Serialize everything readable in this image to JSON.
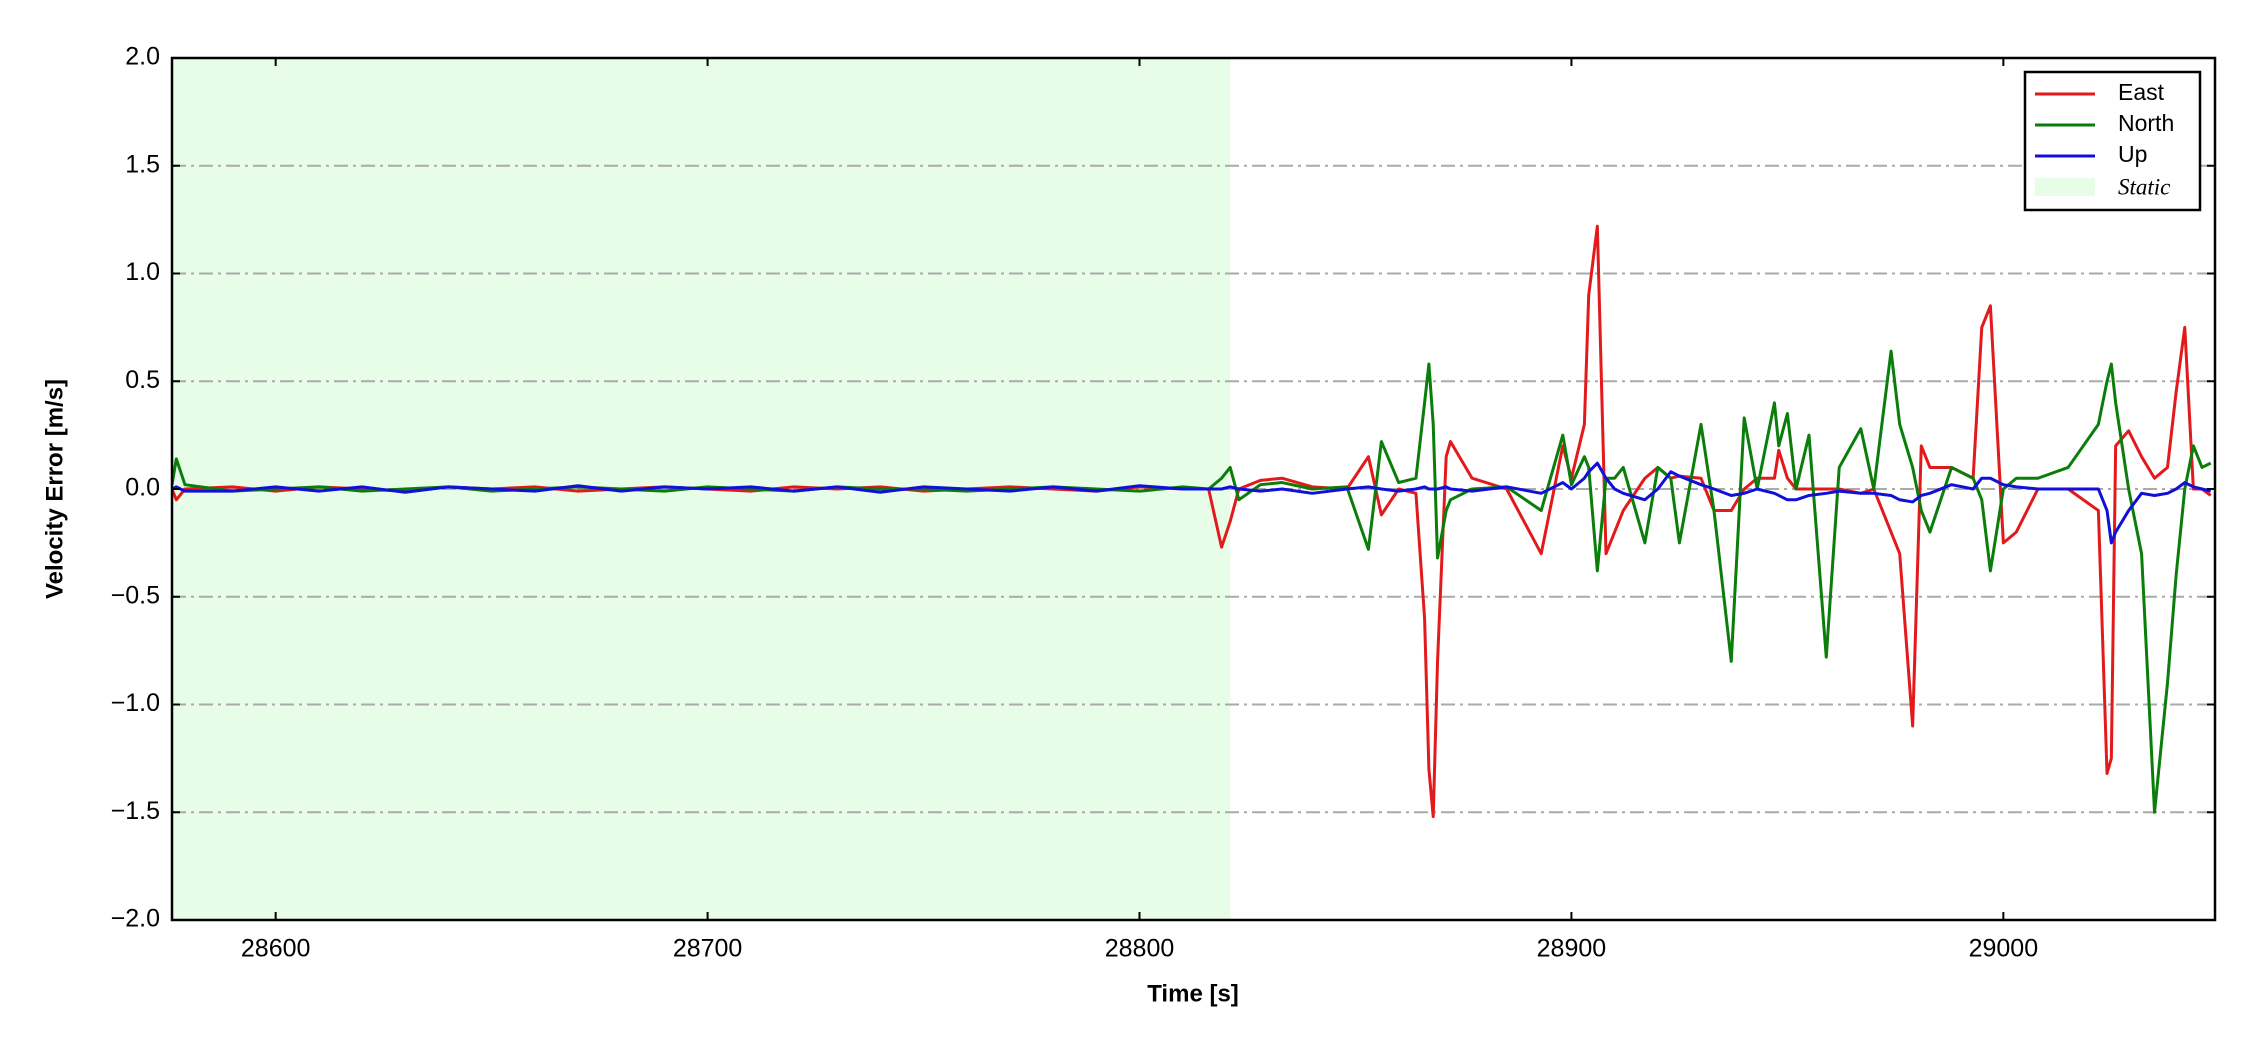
{
  "chart_data": {
    "type": "line",
    "xlabel": "Time [s]",
    "ylabel": "Velocity Error [m/s]",
    "xlim": [
      28576,
      29049
    ],
    "ylim": [
      -2.0,
      2.0
    ],
    "xticks": [
      28600,
      28700,
      28800,
      28900,
      29000
    ],
    "yticks": [
      {
        "value": -2.0,
        "label": "−2.0"
      },
      {
        "value": -1.5,
        "label": "−1.5"
      },
      {
        "value": -1.0,
        "label": "−1.0"
      },
      {
        "value": -0.5,
        "label": "−0.5"
      },
      {
        "value": 0.0,
        "label": "0.0"
      },
      {
        "value": 0.5,
        "label": "0.5"
      },
      {
        "value": 1.0,
        "label": "1.0"
      },
      {
        "value": 1.5,
        "label": "1.5"
      },
      {
        "value": 2.0,
        "label": "2.0"
      }
    ],
    "grid": true,
    "legend": "upper right",
    "shaded_region": {
      "label": "Static",
      "xmin": 28576,
      "xmax": 28821,
      "color": "#e8fde8"
    },
    "x": [
      28576,
      28577,
      28579,
      28590,
      28600,
      28610,
      28620,
      28630,
      28640,
      28650,
      28660,
      28670,
      28680,
      28690,
      28700,
      28710,
      28720,
      28730,
      28740,
      28750,
      28760,
      28770,
      28780,
      28790,
      28800,
      28810,
      28816,
      28819,
      28821,
      28823,
      28828,
      28833,
      28840,
      28848,
      28853,
      28856,
      28860,
      28864,
      28866,
      28867,
      28868,
      28869,
      28871,
      28872,
      28877,
      28885,
      28893,
      28898,
      28900,
      28903,
      28904,
      28906,
      28908,
      28910,
      28912,
      28917,
      28920,
      28923,
      28925,
      28930,
      28933,
      28937,
      28940,
      28943,
      28947,
      28948,
      28950,
      28952,
      28955,
      28959,
      28962,
      28967,
      28970,
      28974,
      28976,
      28979,
      28981,
      28983,
      28988,
      28993,
      28995,
      28997,
      29000,
      29003,
      29008,
      29015,
      29022,
      29024,
      29025,
      29026,
      29029,
      29032,
      29035,
      29038,
      29040,
      29042,
      29044,
      29046,
      29048
    ],
    "series": [
      {
        "name": "East",
        "color": "#e31a1c",
        "values": [
          0,
          -0.05,
          0,
          0.01,
          -0.01,
          0.01,
          0,
          -0.01,
          0.01,
          0,
          0.01,
          -0.01,
          0,
          0.01,
          0,
          -0.01,
          0.01,
          0,
          0.01,
          -0.01,
          0,
          0.01,
          0,
          -0.01,
          0.01,
          0,
          0,
          -0.27,
          -0.15,
          0,
          0.04,
          0.05,
          0.01,
          0,
          0.15,
          -0.12,
          0,
          -0.02,
          -0.6,
          -1.3,
          -1.52,
          -0.8,
          0.15,
          0.22,
          0.05,
          0,
          -0.3,
          0.2,
          0.05,
          0.3,
          0.9,
          1.22,
          -0.3,
          -0.2,
          -0.1,
          0.05,
          0.1,
          0.05,
          0.06,
          0.05,
          -0.1,
          -0.1,
          0,
          0.05,
          0.05,
          0.18,
          0.05,
          0,
          0,
          0,
          0,
          -0.02,
          0,
          -0.2,
          -0.3,
          -1.1,
          0.2,
          0.1,
          0.1,
          0.05,
          0.75,
          0.85,
          -0.25,
          -0.2,
          0,
          0,
          -0.1,
          -1.32,
          -1.25,
          0.2,
          0.27,
          0.15,
          0.05,
          0.1,
          0.45,
          0.75,
          0,
          0,
          -0.03
        ]
      },
      {
        "name": "North",
        "color": "#0a7d0a",
        "values": [
          0.02,
          0.14,
          0.02,
          -0.01,
          0,
          0.01,
          -0.01,
          0,
          0.01,
          -0.01,
          0,
          0.01,
          0,
          -0.01,
          0.01,
          0,
          -0.01,
          0.01,
          0,
          0,
          -0.01,
          0,
          0.01,
          0,
          -0.01,
          0.01,
          0,
          0.05,
          0.1,
          -0.05,
          0.02,
          0.03,
          0,
          0.01,
          -0.28,
          0.22,
          0.03,
          0.05,
          0.4,
          0.58,
          0.3,
          -0.32,
          -0.1,
          -0.05,
          0,
          0.01,
          -0.1,
          0.25,
          0.02,
          0.15,
          0.1,
          -0.38,
          0.05,
          0.05,
          0.1,
          -0.25,
          0.1,
          0.05,
          -0.25,
          0.3,
          -0.1,
          -0.8,
          0.33,
          0,
          0.4,
          0.2,
          0.35,
          0,
          0.25,
          -0.78,
          0.1,
          0.28,
          0,
          0.64,
          0.3,
          0.1,
          -0.1,
          -0.2,
          0.1,
          0.05,
          -0.05,
          -0.38,
          0,
          0.05,
          0.05,
          0.1,
          0.3,
          0.5,
          0.58,
          0.4,
          0,
          -0.3,
          -1.5,
          -0.9,
          -0.4,
          0,
          0.2,
          0.1,
          0.12
        ]
      },
      {
        "name": "Up",
        "color": "#1010d8",
        "values": [
          0,
          0.01,
          -0.01,
          -0.01,
          0.01,
          -0.01,
          0.01,
          -0.015,
          0.01,
          0,
          -0.01,
          0.015,
          -0.01,
          0.01,
          0,
          0.01,
          -0.01,
          0.01,
          -0.015,
          0.01,
          0,
          -0.01,
          0.01,
          -0.01,
          0.015,
          0,
          0,
          0,
          0.01,
          0,
          -0.01,
          0,
          -0.02,
          0,
          0.01,
          0,
          -0.01,
          0,
          0.01,
          0,
          0,
          0,
          0.01,
          0,
          -0.01,
          0.01,
          -0.02,
          0.03,
          0,
          0.05,
          0.08,
          0.12,
          0.05,
          0,
          -0.02,
          -0.05,
          0,
          0.08,
          0.06,
          0.02,
          0,
          -0.03,
          -0.02,
          0,
          -0.02,
          -0.03,
          -0.05,
          -0.05,
          -0.03,
          -0.02,
          -0.01,
          -0.02,
          -0.02,
          -0.03,
          -0.05,
          -0.06,
          -0.03,
          -0.02,
          0.02,
          0,
          0.05,
          0.05,
          0.02,
          0.01,
          0,
          0,
          0,
          -0.1,
          -0.25,
          -0.2,
          -0.1,
          -0.02,
          -0.03,
          -0.02,
          0,
          0.03,
          0.01,
          0,
          -0.01
        ]
      }
    ]
  }
}
